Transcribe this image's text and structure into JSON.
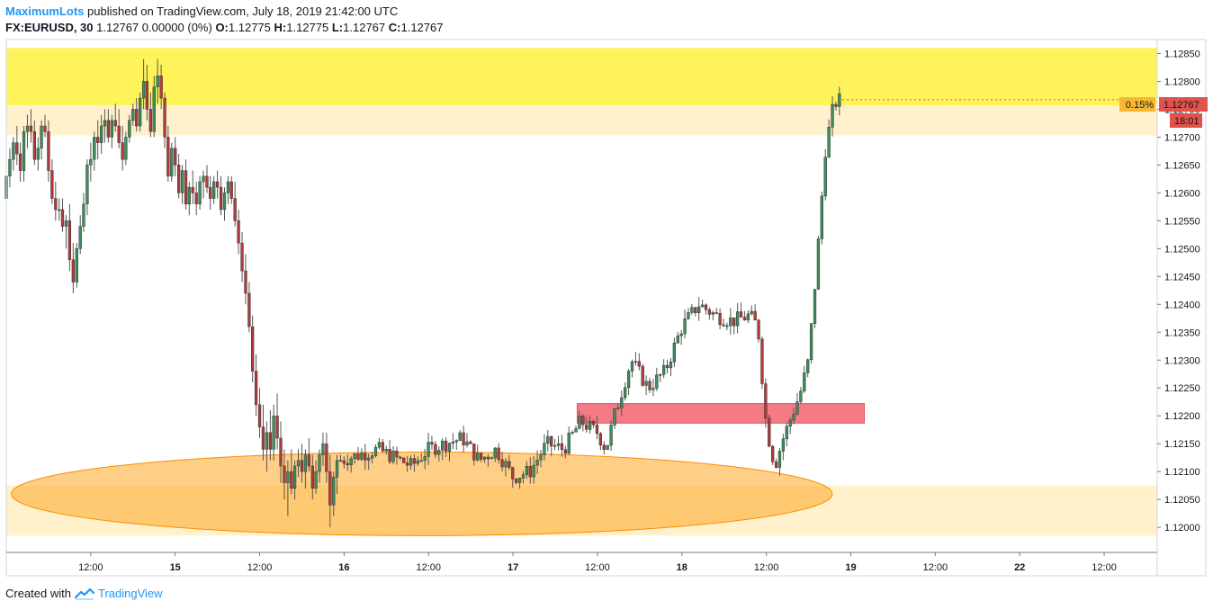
{
  "header": {
    "author": "MaximumLots",
    "published": "published on TradingView.com, July 18, 2019 21:42:00 UTC",
    "symbol": "FX:EURUSD, 30",
    "quote": "1.12767 0.00000 (0%)",
    "o_label": "O:",
    "o_value": "1.12775",
    "h_label": "H:",
    "h_value": "1.12775",
    "l_label": "L:",
    "l_value": "1.12767",
    "c_label": "C:",
    "c_value": "1.12767"
  },
  "footer": {
    "created_with": "Created with",
    "brand": "TradingView"
  },
  "price_tag": {
    "price": "1.12767",
    "countdown": "18:01",
    "change": "0.15%",
    "color": "#e0524a"
  },
  "chart_data": {
    "type": "candlestick",
    "symbol": "FX:EURUSD",
    "timeframe": "30",
    "ylim": [
      1.11955,
      1.12875
    ],
    "y_ticks": [
      "1.12850",
      "1.12800",
      "1.12750",
      "1.12700",
      "1.12650",
      "1.12600",
      "1.12550",
      "1.12500",
      "1.12450",
      "1.12400",
      "1.12350",
      "1.12300",
      "1.12250",
      "1.12200",
      "1.12150",
      "1.12100",
      "1.12050",
      "1.12000"
    ],
    "x_ticks": [
      {
        "label": "12:00",
        "bold": false,
        "t": 0.5
      },
      {
        "label": "15",
        "bold": true,
        "t": 1.0
      },
      {
        "label": "12:00",
        "bold": false,
        "t": 1.5
      },
      {
        "label": "16",
        "bold": true,
        "t": 2.0
      },
      {
        "label": "12:00",
        "bold": false,
        "t": 2.5
      },
      {
        "label": "17",
        "bold": true,
        "t": 3.0
      },
      {
        "label": "12:00",
        "bold": false,
        "t": 3.5
      },
      {
        "label": "18",
        "bold": true,
        "t": 4.0
      },
      {
        "label": "12:00",
        "bold": false,
        "t": 4.5
      },
      {
        "label": "19",
        "bold": true,
        "t": 5.0
      },
      {
        "label": "12:00",
        "bold": false,
        "t": 5.5
      },
      {
        "label": "22",
        "bold": true,
        "t": 6.0
      },
      {
        "label": "12:00",
        "bold": false,
        "t": 6.5
      }
    ],
    "zones": [
      {
        "name": "resistance-zone",
        "y_from": 1.12757,
        "y_to": 1.1286,
        "x_from": 0.0,
        "x_to": "end",
        "color": "#fff35c"
      },
      {
        "name": "resistance-zone-light",
        "y_from": 1.12703,
        "y_to": 1.12757,
        "x_from": 0.0,
        "x_to": "end",
        "color": "#fff1cc"
      },
      {
        "name": "support-zone-light",
        "y_from": 1.11985,
        "y_to": 1.12075,
        "x_from": 0.0,
        "x_to": "end",
        "color": "#fff1cc"
      },
      {
        "name": "order-block",
        "y_from": 1.12187,
        "y_to": 1.12222,
        "x_from": 3.38,
        "x_to": 5.08,
        "color": "#f47a83"
      }
    ],
    "ellipse": {
      "cx_t": 2.46,
      "cy": 1.1206,
      "rx_t": 2.43,
      "ry": 0.00075,
      "color": "#ffa726"
    },
    "candle_width_t": 0.0149,
    "candles": [
      [
        0.0,
        1.1259,
        1.1264,
        1.1258,
        1.1263
      ],
      [
        0.021,
        1.1263,
        1.1268,
        1.1261,
        1.1266
      ],
      [
        0.042,
        1.1266,
        1.127,
        1.1264,
        1.1269
      ],
      [
        0.063,
        1.1269,
        1.1272,
        1.1265,
        1.1267
      ],
      [
        0.083,
        1.1267,
        1.1269,
        1.1262,
        1.1264
      ],
      [
        0.104,
        1.1264,
        1.1272,
        1.1262,
        1.1271
      ],
      [
        0.125,
        1.1271,
        1.1274,
        1.1268,
        1.1272
      ],
      [
        0.146,
        1.1272,
        1.1275,
        1.1269,
        1.1271
      ],
      [
        0.167,
        1.1271,
        1.1273,
        1.1265,
        1.1266
      ],
      [
        0.188,
        1.1266,
        1.127,
        1.1264,
        1.1268
      ],
      [
        0.208,
        1.1268,
        1.1273,
        1.1266,
        1.1272
      ],
      [
        0.229,
        1.1272,
        1.1274,
        1.127,
        1.1271
      ],
      [
        0.25,
        1.1271,
        1.1273,
        1.1262,
        1.1264
      ],
      [
        0.271,
        1.1264,
        1.1266,
        1.1258,
        1.1259
      ],
      [
        0.292,
        1.1259,
        1.1262,
        1.1255,
        1.1257
      ],
      [
        0.313,
        1.1257,
        1.1259,
        1.1255,
        1.1257
      ],
      [
        0.333,
        1.1257,
        1.1259,
        1.1253,
        1.1254
      ],
      [
        0.354,
        1.1254,
        1.1256,
        1.125,
        1.1255
      ],
      [
        0.375,
        1.1255,
        1.1258,
        1.1246,
        1.1248
      ],
      [
        0.396,
        1.1248,
        1.1251,
        1.1242,
        1.1244
      ],
      [
        0.417,
        1.1244,
        1.1251,
        1.1243,
        1.125
      ],
      [
        0.438,
        1.125,
        1.1256,
        1.1249,
        1.1254
      ],
      [
        0.458,
        1.1254,
        1.126,
        1.1253,
        1.1258
      ],
      [
        0.479,
        1.1258,
        1.1266,
        1.1256,
        1.1265
      ],
      [
        0.5,
        1.1265,
        1.1269,
        1.1262,
        1.1266
      ],
      [
        0.521,
        1.1266,
        1.1271,
        1.1264,
        1.127
      ],
      [
        0.542,
        1.127,
        1.1273,
        1.1266,
        1.1269
      ],
      [
        0.563,
        1.1269,
        1.1274,
        1.1267,
        1.1272
      ],
      [
        0.583,
        1.1272,
        1.1275,
        1.1269,
        1.1273
      ],
      [
        0.604,
        1.1273,
        1.1275,
        1.1269,
        1.127
      ],
      [
        0.625,
        1.127,
        1.1274,
        1.1268,
        1.1273
      ],
      [
        0.646,
        1.1273,
        1.1276,
        1.1271,
        1.1272
      ],
      [
        0.667,
        1.1272,
        1.1275,
        1.1268,
        1.1269
      ],
      [
        0.688,
        1.1269,
        1.1272,
        1.1264,
        1.1266
      ],
      [
        0.708,
        1.1266,
        1.1271,
        1.1265,
        1.127
      ],
      [
        0.729,
        1.127,
        1.1274,
        1.1269,
        1.1273
      ],
      [
        0.75,
        1.1273,
        1.1276,
        1.1272,
        1.1275
      ],
      [
        0.771,
        1.1275,
        1.1277,
        1.1271,
        1.1272
      ],
      [
        0.792,
        1.1272,
        1.1278,
        1.1271,
        1.1277
      ],
      [
        0.813,
        1.1277,
        1.1284,
        1.1275,
        1.128
      ],
      [
        0.833,
        1.128,
        1.1283,
        1.1273,
        1.1275
      ],
      [
        0.854,
        1.1275,
        1.1278,
        1.127,
        1.1271
      ],
      [
        0.875,
        1.1271,
        1.1281,
        1.127,
        1.1279
      ],
      [
        0.896,
        1.1279,
        1.1284,
        1.1276,
        1.1281
      ],
      [
        0.917,
        1.1281,
        1.1283,
        1.1275,
        1.1277
      ],
      [
        0.938,
        1.1277,
        1.1278,
        1.1268,
        1.127
      ],
      [
        0.958,
        1.127,
        1.1272,
        1.1262,
        1.1263
      ],
      [
        0.979,
        1.1263,
        1.1269,
        1.1262,
        1.1268
      ],
      [
        1.0,
        1.1268,
        1.127,
        1.1263,
        1.1265
      ],
      [
        1.021,
        1.1265,
        1.1267,
        1.1259,
        1.126
      ],
      [
        1.042,
        1.126,
        1.1265,
        1.1258,
        1.1264
      ],
      [
        1.063,
        1.1264,
        1.1266,
        1.1257,
        1.1258
      ],
      [
        1.083,
        1.1258,
        1.1262,
        1.1256,
        1.1261
      ],
      [
        1.104,
        1.1261,
        1.1264,
        1.1258,
        1.126
      ],
      [
        1.125,
        1.126,
        1.1262,
        1.1256,
        1.1258
      ],
      [
        1.146,
        1.1258,
        1.1263,
        1.1257,
        1.1262
      ],
      [
        1.167,
        1.1262,
        1.1264,
        1.1259,
        1.1263
      ],
      [
        1.188,
        1.1263,
        1.1265,
        1.126,
        1.1261
      ],
      [
        1.208,
        1.1261,
        1.1263,
        1.1257,
        1.1259
      ],
      [
        1.229,
        1.1259,
        1.1263,
        1.1258,
        1.1262
      ],
      [
        1.25,
        1.1262,
        1.1264,
        1.1259,
        1.1261
      ],
      [
        1.271,
        1.1261,
        1.1263,
        1.1256,
        1.1257
      ],
      [
        1.292,
        1.1257,
        1.1261,
        1.1255,
        1.126
      ],
      [
        1.313,
        1.126,
        1.1263,
        1.1258,
        1.1262
      ],
      [
        1.333,
        1.1262,
        1.1263,
        1.1258,
        1.1259
      ],
      [
        1.354,
        1.1259,
        1.1262,
        1.1254,
        1.1255
      ],
      [
        1.375,
        1.1255,
        1.1257,
        1.1249,
        1.1251
      ],
      [
        1.396,
        1.1251,
        1.1253,
        1.1244,
        1.1246
      ],
      [
        1.417,
        1.1246,
        1.1249,
        1.124,
        1.1242
      ],
      [
        1.438,
        1.1242,
        1.1244,
        1.1235,
        1.1236
      ],
      [
        1.458,
        1.1236,
        1.1238,
        1.1226,
        1.1228
      ],
      [
        1.479,
        1.1228,
        1.1231,
        1.122,
        1.1222
      ],
      [
        1.5,
        1.1222,
        1.1225,
        1.1216,
        1.1218
      ],
      [
        1.521,
        1.1218,
        1.1222,
        1.1212,
        1.1214
      ],
      [
        1.542,
        1.1214,
        1.1219,
        1.121,
        1.1217
      ],
      [
        1.563,
        1.1217,
        1.1221,
        1.1212,
        1.1214
      ],
      [
        1.583,
        1.1214,
        1.1222,
        1.1212,
        1.122
      ],
      [
        1.604,
        1.122,
        1.1224,
        1.1214,
        1.1216
      ],
      [
        1.625,
        1.1216,
        1.1219,
        1.1208,
        1.1211
      ],
      [
        1.646,
        1.1211,
        1.1214,
        1.1205,
        1.1208
      ],
      [
        1.667,
        1.1208,
        1.1212,
        1.1202,
        1.121
      ],
      [
        1.688,
        1.121,
        1.1214,
        1.1206,
        1.1207
      ],
      [
        1.708,
        1.1207,
        1.1212,
        1.1205,
        1.1211
      ],
      [
        1.729,
        1.1211,
        1.1214,
        1.1209,
        1.1212
      ],
      [
        1.75,
        1.1212,
        1.1215,
        1.1208,
        1.121
      ],
      [
        1.771,
        1.121,
        1.1214,
        1.1207,
        1.1213
      ],
      [
        1.792,
        1.1213,
        1.1216,
        1.121,
        1.1211
      ],
      [
        1.813,
        1.1211,
        1.1213,
        1.1205,
        1.1207
      ],
      [
        1.833,
        1.1207,
        1.1212,
        1.1206,
        1.121
      ],
      [
        1.854,
        1.121,
        1.1214,
        1.1208,
        1.1213
      ],
      [
        1.875,
        1.1213,
        1.1217,
        1.1211,
        1.1215
      ],
      [
        1.896,
        1.1215,
        1.1217,
        1.1208,
        1.121
      ],
      [
        1.917,
        1.121,
        1.1213,
        1.12,
        1.1204
      ],
      [
        1.938,
        1.1204,
        1.121,
        1.1202,
        1.1209
      ],
      [
        1.958,
        1.1209,
        1.1213,
        1.1206,
        1.1212
      ]
    ]
  }
}
